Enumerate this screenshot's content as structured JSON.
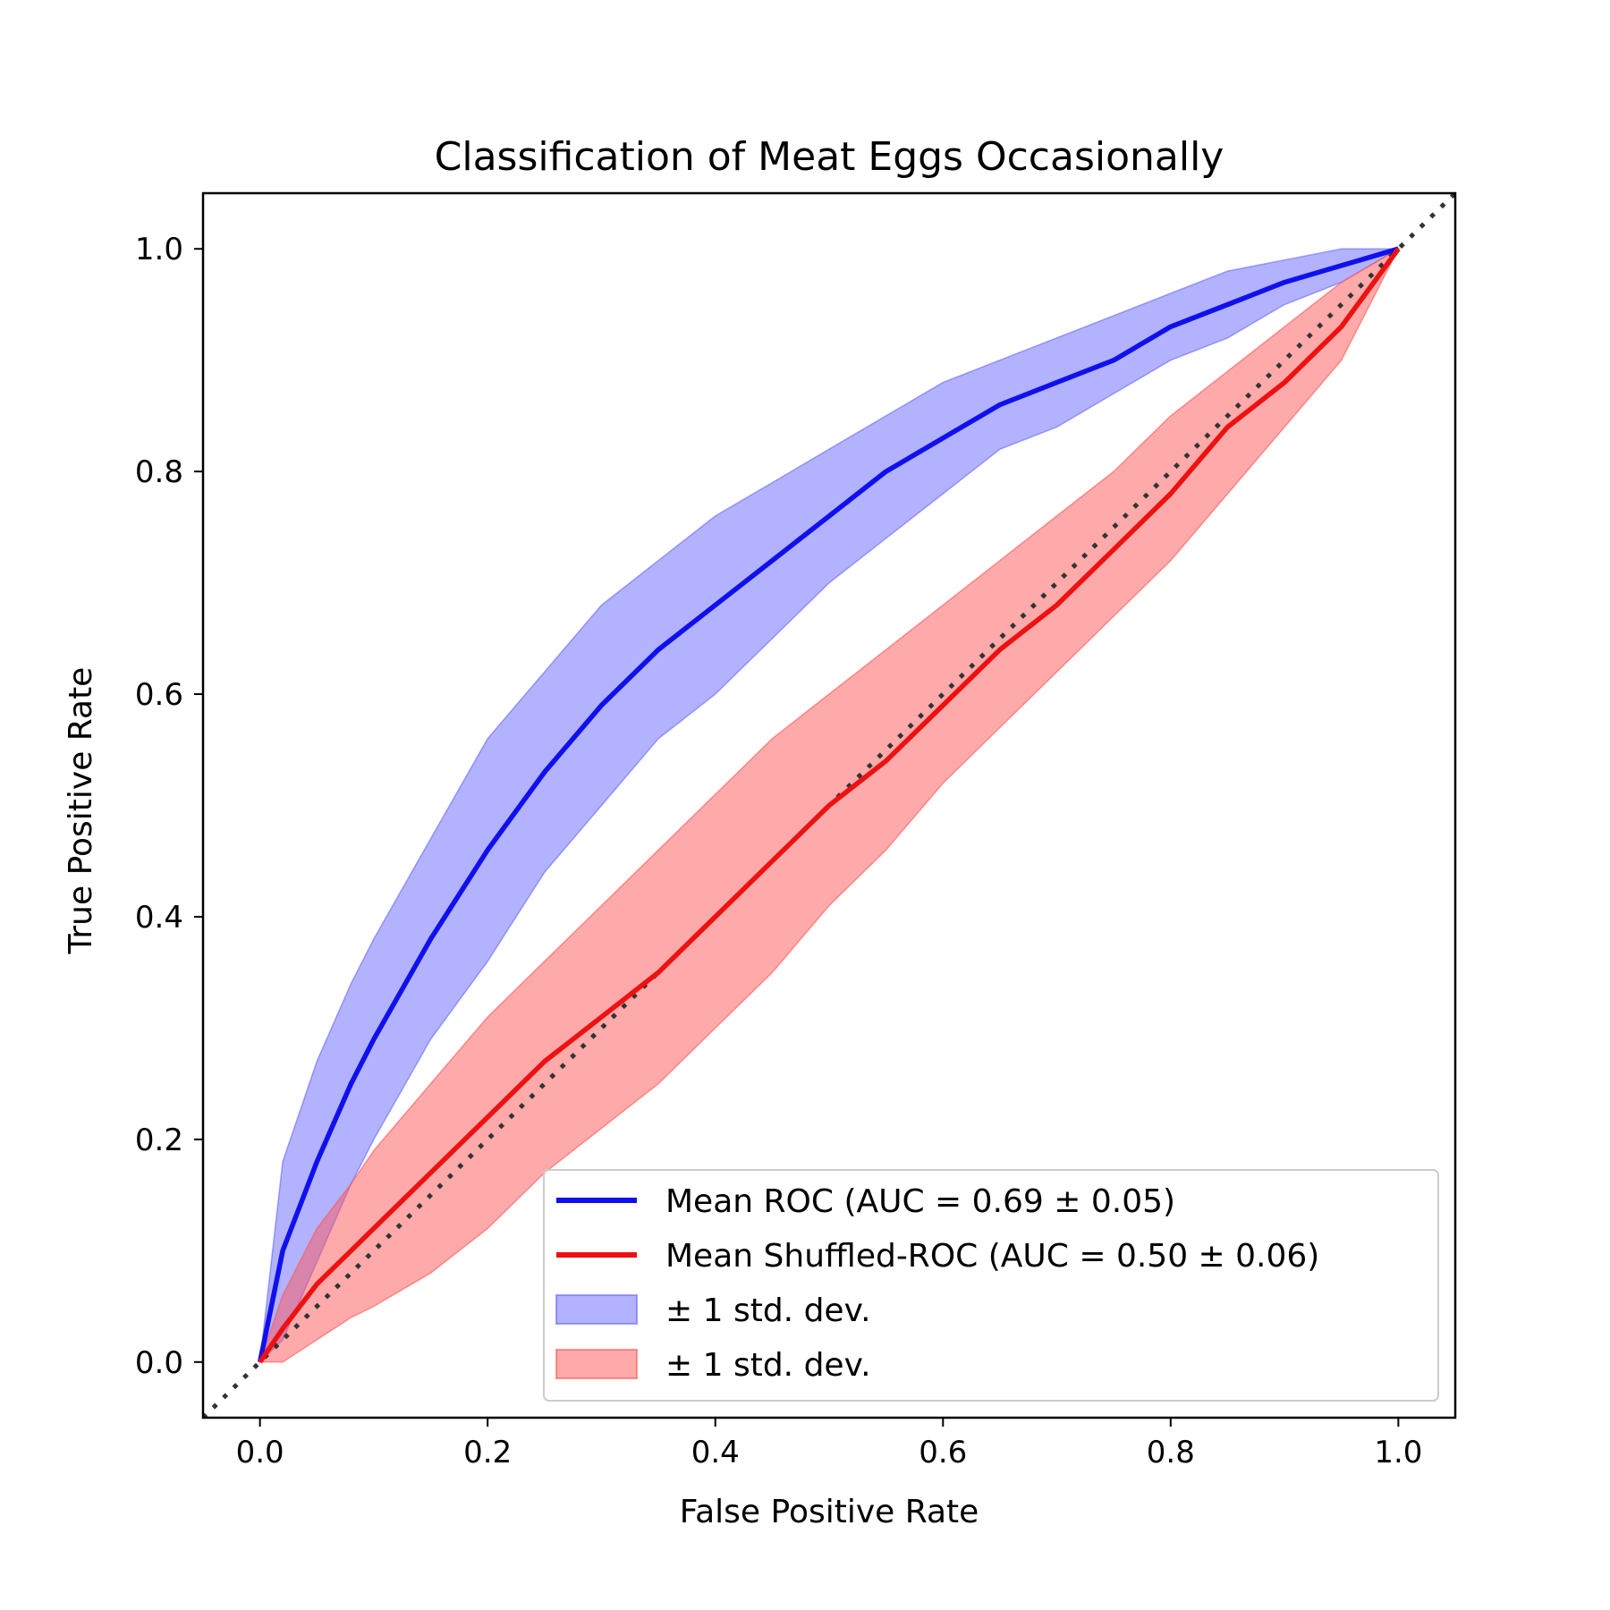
{
  "chart_data": {
    "type": "line",
    "title": "Classification of Meat Eggs Occasionally",
    "xlabel": "False Positive Rate",
    "ylabel": "True Positive Rate",
    "xlim": [
      -0.05,
      1.05
    ],
    "ylim": [
      -0.05,
      1.05
    ],
    "xticks": [
      "0.0",
      "0.2",
      "0.4",
      "0.6",
      "0.8",
      "1.0"
    ],
    "yticks": [
      "0.0",
      "0.2",
      "0.4",
      "0.6",
      "0.8",
      "1.0"
    ],
    "legend_position": "lower-right",
    "grid": false,
    "x": [
      0,
      0.02,
      0.05,
      0.08,
      0.1,
      0.15,
      0.2,
      0.25,
      0.3,
      0.35,
      0.4,
      0.45,
      0.5,
      0.55,
      0.6,
      0.65,
      0.7,
      0.75,
      0.8,
      0.85,
      0.9,
      0.95,
      1.0
    ],
    "series": [
      {
        "name": "Mean ROC (AUC = 0.69 ± 0.05)",
        "color": "#1010ee",
        "values": [
          0,
          0.1,
          0.18,
          0.25,
          0.29,
          0.38,
          0.46,
          0.53,
          0.59,
          0.64,
          0.68,
          0.72,
          0.76,
          0.8,
          0.83,
          0.86,
          0.88,
          0.9,
          0.93,
          0.95,
          0.97,
          0.985,
          1.0
        ],
        "lower": [
          0,
          0.02,
          0.09,
          0.16,
          0.2,
          0.29,
          0.36,
          0.44,
          0.5,
          0.56,
          0.6,
          0.65,
          0.7,
          0.74,
          0.78,
          0.82,
          0.84,
          0.87,
          0.9,
          0.92,
          0.95,
          0.97,
          1.0
        ],
        "upper": [
          0,
          0.18,
          0.27,
          0.34,
          0.38,
          0.47,
          0.56,
          0.62,
          0.68,
          0.72,
          0.76,
          0.79,
          0.82,
          0.85,
          0.88,
          0.9,
          0.92,
          0.94,
          0.96,
          0.98,
          0.99,
          1.0,
          1.0
        ],
        "band_color": "#6666ff"
      },
      {
        "name": "Mean Shuffled-ROC (AUC = 0.50 ± 0.06)",
        "color": "#ee1111",
        "values": [
          0,
          0.03,
          0.07,
          0.1,
          0.12,
          0.17,
          0.22,
          0.27,
          0.31,
          0.35,
          0.4,
          0.45,
          0.5,
          0.54,
          0.59,
          0.64,
          0.68,
          0.73,
          0.78,
          0.84,
          0.88,
          0.93,
          1.0
        ],
        "lower": [
          0,
          0.0,
          0.02,
          0.04,
          0.05,
          0.08,
          0.12,
          0.17,
          0.21,
          0.25,
          0.3,
          0.35,
          0.41,
          0.46,
          0.52,
          0.57,
          0.62,
          0.67,
          0.72,
          0.78,
          0.84,
          0.9,
          1.0
        ],
        "upper": [
          0,
          0.06,
          0.12,
          0.16,
          0.19,
          0.25,
          0.31,
          0.36,
          0.41,
          0.46,
          0.51,
          0.56,
          0.6,
          0.64,
          0.68,
          0.72,
          0.76,
          0.8,
          0.85,
          0.89,
          0.93,
          0.97,
          1.0
        ],
        "band_color": "#ff5555"
      }
    ],
    "legend": [
      {
        "label": "Mean ROC (AUC = 0.69 ± 0.05)",
        "kind": "line",
        "color": "#1010ee"
      },
      {
        "label": "Mean Shuffled-ROC (AUC = 0.50 ± 0.06)",
        "kind": "line",
        "color": "#ee1111"
      },
      {
        "label": "± 1 std. dev.",
        "kind": "patch",
        "color": "#6666ff"
      },
      {
        "label": "± 1 std. dev.",
        "kind": "patch",
        "color": "#ff5555"
      }
    ],
    "chance_line": {
      "style": "dotted",
      "color": "#333333"
    }
  }
}
